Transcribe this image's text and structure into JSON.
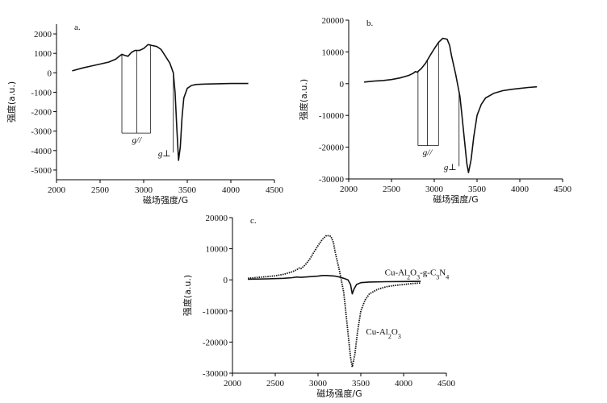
{
  "chart_data": [
    {
      "panel": "a.",
      "type": "line",
      "xlabel": "磁场强度/G",
      "ylabel": "强度(a.u.)",
      "xlim": [
        2000,
        4500
      ],
      "ylim": [
        -5500,
        2500
      ],
      "xticks": [
        2000,
        2500,
        3000,
        3500,
        4000,
        4500
      ],
      "yticks": [
        -5000,
        -4000,
        -3000,
        -2000,
        -1000,
        0,
        1000,
        2000
      ],
      "series": [
        {
          "x": [
            2180,
            2300,
            2400,
            2500,
            2600,
            2680,
            2720,
            2750,
            2780,
            2820,
            2860,
            2900,
            2950,
            3000,
            3050,
            3100,
            3150,
            3200,
            3250,
            3300,
            3320,
            3340,
            3360,
            3380,
            3400,
            3420,
            3440,
            3460,
            3500,
            3550,
            3600,
            3700,
            3800,
            3900,
            4000,
            4100,
            4200
          ],
          "y": [
            100,
            250,
            350,
            450,
            550,
            700,
            850,
            950,
            900,
            850,
            1050,
            1150,
            1150,
            1250,
            1450,
            1400,
            1350,
            1200,
            850,
            500,
            250,
            0,
            -1000,
            -2800,
            -4500,
            -3800,
            -2300,
            -1300,
            -800,
            -650,
            -600,
            -580,
            -570,
            -560,
            -550,
            -550,
            -550
          ]
        }
      ],
      "annotations": [
        {
          "text": "g//",
          "x": 2920,
          "y": -3100
        },
        {
          "text": "g⊥",
          "x": 3280,
          "y": -4100
        }
      ]
    },
    {
      "panel": "b.",
      "type": "line",
      "xlabel": "磁场强度/G",
      "ylabel": "强度(a.u.)",
      "xlim": [
        2000,
        4500
      ],
      "ylim": [
        -30000,
        20000
      ],
      "xticks": [
        2000,
        2500,
        3000,
        3500,
        4000,
        4500
      ],
      "yticks": [
        -30000,
        -20000,
        -10000,
        0,
        10000,
        20000
      ],
      "series": [
        {
          "x": [
            2180,
            2300,
            2400,
            2500,
            2600,
            2700,
            2750,
            2780,
            2800,
            2850,
            2900,
            2950,
            3000,
            3050,
            3100,
            3150,
            3180,
            3200,
            3250,
            3300,
            3320,
            3350,
            3380,
            3400,
            3430,
            3460,
            3500,
            3550,
            3600,
            3700,
            3800,
            3900,
            4000,
            4100,
            4200
          ],
          "y": [
            500,
            800,
            1000,
            1300,
            1800,
            2600,
            3200,
            3800,
            3600,
            4800,
            6500,
            8800,
            11000,
            13000,
            14300,
            14000,
            12000,
            9000,
            3000,
            -4000,
            -9000,
            -17000,
            -25000,
            -28000,
            -24000,
            -17000,
            -10000,
            -6500,
            -4500,
            -3000,
            -2200,
            -1800,
            -1500,
            -1200,
            -1000
          ]
        }
      ],
      "annotations": [
        {
          "text": "g//",
          "x": 2920,
          "y": -19500
        },
        {
          "text": "g⊥",
          "x": 3270,
          "y": -26000
        }
      ]
    },
    {
      "panel": "c.",
      "type": "line",
      "xlabel": "磁场强度/G",
      "ylabel": "强度(a.u.)",
      "xlim": [
        2000,
        4500
      ],
      "ylim": [
        -30000,
        20000
      ],
      "xticks": [
        2000,
        2500,
        3000,
        3500,
        4000,
        4500
      ],
      "yticks": [
        -30000,
        -20000,
        -10000,
        0,
        10000,
        20000
      ],
      "series": [
        {
          "name": "Cu-Al₂O₃-g-C₃N₄",
          "x": [
            2180,
            2400,
            2600,
            2700,
            2750,
            2800,
            2900,
            3000,
            3050,
            3100,
            3150,
            3200,
            3250,
            3300,
            3350,
            3380,
            3400,
            3420,
            3450,
            3500,
            3600,
            3800,
            4000,
            4200
          ],
          "y": [
            200,
            300,
            500,
            700,
            900,
            800,
            1000,
            1200,
            1400,
            1400,
            1300,
            1200,
            900,
            500,
            0,
            -1500,
            -4500,
            -3000,
            -1500,
            -900,
            -700,
            -600,
            -550,
            -500
          ]
        },
        {
          "name": "Cu-Al₂O₃",
          "x": [
            2180,
            2300,
            2400,
            2500,
            2600,
            2700,
            2750,
            2780,
            2800,
            2850,
            2900,
            2950,
            3000,
            3050,
            3100,
            3150,
            3180,
            3200,
            3250,
            3300,
            3320,
            3350,
            3380,
            3400,
            3430,
            3460,
            3500,
            3550,
            3600,
            3700,
            3800,
            3900,
            4000,
            4100,
            4200
          ],
          "y": [
            500,
            800,
            1000,
            1300,
            1800,
            2600,
            3200,
            3800,
            3600,
            4800,
            6500,
            8800,
            11000,
            13000,
            14300,
            14000,
            12000,
            9000,
            3000,
            -4000,
            -9000,
            -17000,
            -25000,
            -28000,
            -24000,
            -17000,
            -10000,
            -6500,
            -4500,
            -3000,
            -2200,
            -1800,
            -1500,
            -1200,
            -1000
          ]
        }
      ]
    }
  ]
}
